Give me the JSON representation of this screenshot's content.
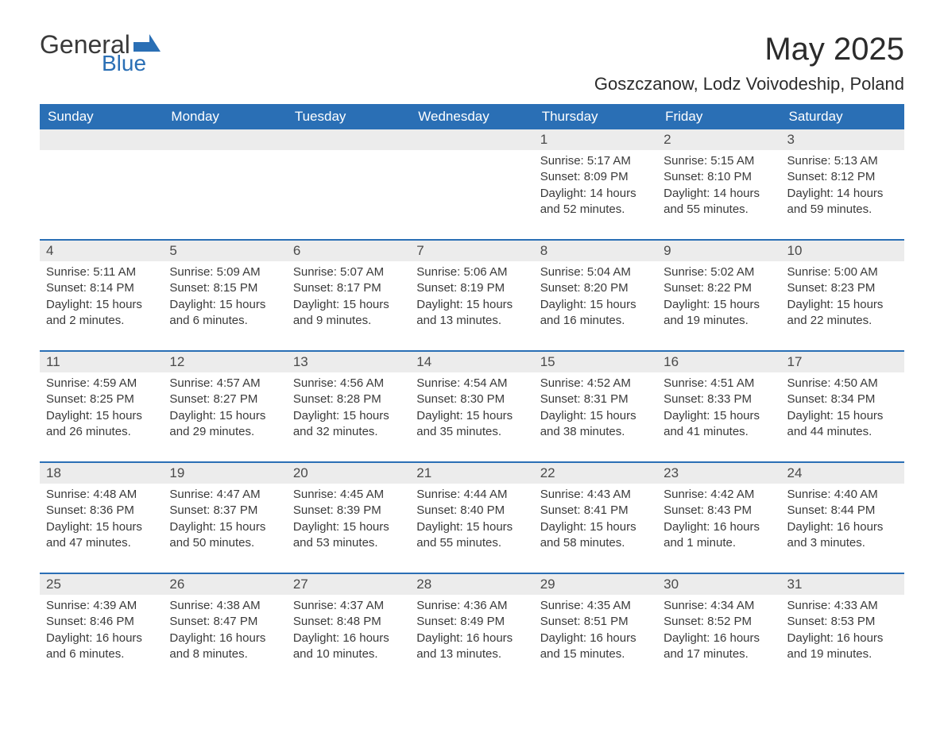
{
  "logo": {
    "text_general": "General",
    "text_blue": "Blue",
    "shape_color": "#2a6fb5"
  },
  "header": {
    "month_title": "May 2025",
    "location": "Goszczanow, Lodz Voivodeship, Poland"
  },
  "colors": {
    "header_bg": "#2a6fb5",
    "header_text": "#ffffff",
    "daynum_bg": "#ececec",
    "daynum_text": "#4a4a4a",
    "body_text": "#3a3a3a",
    "row_border": "#2a6fb5"
  },
  "calendar": {
    "weekdays": [
      "Sunday",
      "Monday",
      "Tuesday",
      "Wednesday",
      "Thursday",
      "Friday",
      "Saturday"
    ],
    "weeks": [
      [
        {
          "day": "",
          "sunrise": "",
          "sunset": "",
          "daylight": ""
        },
        {
          "day": "",
          "sunrise": "",
          "sunset": "",
          "daylight": ""
        },
        {
          "day": "",
          "sunrise": "",
          "sunset": "",
          "daylight": ""
        },
        {
          "day": "",
          "sunrise": "",
          "sunset": "",
          "daylight": ""
        },
        {
          "day": "1",
          "sunrise": "Sunrise: 5:17 AM",
          "sunset": "Sunset: 8:09 PM",
          "daylight": "Daylight: 14 hours and 52 minutes."
        },
        {
          "day": "2",
          "sunrise": "Sunrise: 5:15 AM",
          "sunset": "Sunset: 8:10 PM",
          "daylight": "Daylight: 14 hours and 55 minutes."
        },
        {
          "day": "3",
          "sunrise": "Sunrise: 5:13 AM",
          "sunset": "Sunset: 8:12 PM",
          "daylight": "Daylight: 14 hours and 59 minutes."
        }
      ],
      [
        {
          "day": "4",
          "sunrise": "Sunrise: 5:11 AM",
          "sunset": "Sunset: 8:14 PM",
          "daylight": "Daylight: 15 hours and 2 minutes."
        },
        {
          "day": "5",
          "sunrise": "Sunrise: 5:09 AM",
          "sunset": "Sunset: 8:15 PM",
          "daylight": "Daylight: 15 hours and 6 minutes."
        },
        {
          "day": "6",
          "sunrise": "Sunrise: 5:07 AM",
          "sunset": "Sunset: 8:17 PM",
          "daylight": "Daylight: 15 hours and 9 minutes."
        },
        {
          "day": "7",
          "sunrise": "Sunrise: 5:06 AM",
          "sunset": "Sunset: 8:19 PM",
          "daylight": "Daylight: 15 hours and 13 minutes."
        },
        {
          "day": "8",
          "sunrise": "Sunrise: 5:04 AM",
          "sunset": "Sunset: 8:20 PM",
          "daylight": "Daylight: 15 hours and 16 minutes."
        },
        {
          "day": "9",
          "sunrise": "Sunrise: 5:02 AM",
          "sunset": "Sunset: 8:22 PM",
          "daylight": "Daylight: 15 hours and 19 minutes."
        },
        {
          "day": "10",
          "sunrise": "Sunrise: 5:00 AM",
          "sunset": "Sunset: 8:23 PM",
          "daylight": "Daylight: 15 hours and 22 minutes."
        }
      ],
      [
        {
          "day": "11",
          "sunrise": "Sunrise: 4:59 AM",
          "sunset": "Sunset: 8:25 PM",
          "daylight": "Daylight: 15 hours and 26 minutes."
        },
        {
          "day": "12",
          "sunrise": "Sunrise: 4:57 AM",
          "sunset": "Sunset: 8:27 PM",
          "daylight": "Daylight: 15 hours and 29 minutes."
        },
        {
          "day": "13",
          "sunrise": "Sunrise: 4:56 AM",
          "sunset": "Sunset: 8:28 PM",
          "daylight": "Daylight: 15 hours and 32 minutes."
        },
        {
          "day": "14",
          "sunrise": "Sunrise: 4:54 AM",
          "sunset": "Sunset: 8:30 PM",
          "daylight": "Daylight: 15 hours and 35 minutes."
        },
        {
          "day": "15",
          "sunrise": "Sunrise: 4:52 AM",
          "sunset": "Sunset: 8:31 PM",
          "daylight": "Daylight: 15 hours and 38 minutes."
        },
        {
          "day": "16",
          "sunrise": "Sunrise: 4:51 AM",
          "sunset": "Sunset: 8:33 PM",
          "daylight": "Daylight: 15 hours and 41 minutes."
        },
        {
          "day": "17",
          "sunrise": "Sunrise: 4:50 AM",
          "sunset": "Sunset: 8:34 PM",
          "daylight": "Daylight: 15 hours and 44 minutes."
        }
      ],
      [
        {
          "day": "18",
          "sunrise": "Sunrise: 4:48 AM",
          "sunset": "Sunset: 8:36 PM",
          "daylight": "Daylight: 15 hours and 47 minutes."
        },
        {
          "day": "19",
          "sunrise": "Sunrise: 4:47 AM",
          "sunset": "Sunset: 8:37 PM",
          "daylight": "Daylight: 15 hours and 50 minutes."
        },
        {
          "day": "20",
          "sunrise": "Sunrise: 4:45 AM",
          "sunset": "Sunset: 8:39 PM",
          "daylight": "Daylight: 15 hours and 53 minutes."
        },
        {
          "day": "21",
          "sunrise": "Sunrise: 4:44 AM",
          "sunset": "Sunset: 8:40 PM",
          "daylight": "Daylight: 15 hours and 55 minutes."
        },
        {
          "day": "22",
          "sunrise": "Sunrise: 4:43 AM",
          "sunset": "Sunset: 8:41 PM",
          "daylight": "Daylight: 15 hours and 58 minutes."
        },
        {
          "day": "23",
          "sunrise": "Sunrise: 4:42 AM",
          "sunset": "Sunset: 8:43 PM",
          "daylight": "Daylight: 16 hours and 1 minute."
        },
        {
          "day": "24",
          "sunrise": "Sunrise: 4:40 AM",
          "sunset": "Sunset: 8:44 PM",
          "daylight": "Daylight: 16 hours and 3 minutes."
        }
      ],
      [
        {
          "day": "25",
          "sunrise": "Sunrise: 4:39 AM",
          "sunset": "Sunset: 8:46 PM",
          "daylight": "Daylight: 16 hours and 6 minutes."
        },
        {
          "day": "26",
          "sunrise": "Sunrise: 4:38 AM",
          "sunset": "Sunset: 8:47 PM",
          "daylight": "Daylight: 16 hours and 8 minutes."
        },
        {
          "day": "27",
          "sunrise": "Sunrise: 4:37 AM",
          "sunset": "Sunset: 8:48 PM",
          "daylight": "Daylight: 16 hours and 10 minutes."
        },
        {
          "day": "28",
          "sunrise": "Sunrise: 4:36 AM",
          "sunset": "Sunset: 8:49 PM",
          "daylight": "Daylight: 16 hours and 13 minutes."
        },
        {
          "day": "29",
          "sunrise": "Sunrise: 4:35 AM",
          "sunset": "Sunset: 8:51 PM",
          "daylight": "Daylight: 16 hours and 15 minutes."
        },
        {
          "day": "30",
          "sunrise": "Sunrise: 4:34 AM",
          "sunset": "Sunset: 8:52 PM",
          "daylight": "Daylight: 16 hours and 17 minutes."
        },
        {
          "day": "31",
          "sunrise": "Sunrise: 4:33 AM",
          "sunset": "Sunset: 8:53 PM",
          "daylight": "Daylight: 16 hours and 19 minutes."
        }
      ]
    ]
  }
}
